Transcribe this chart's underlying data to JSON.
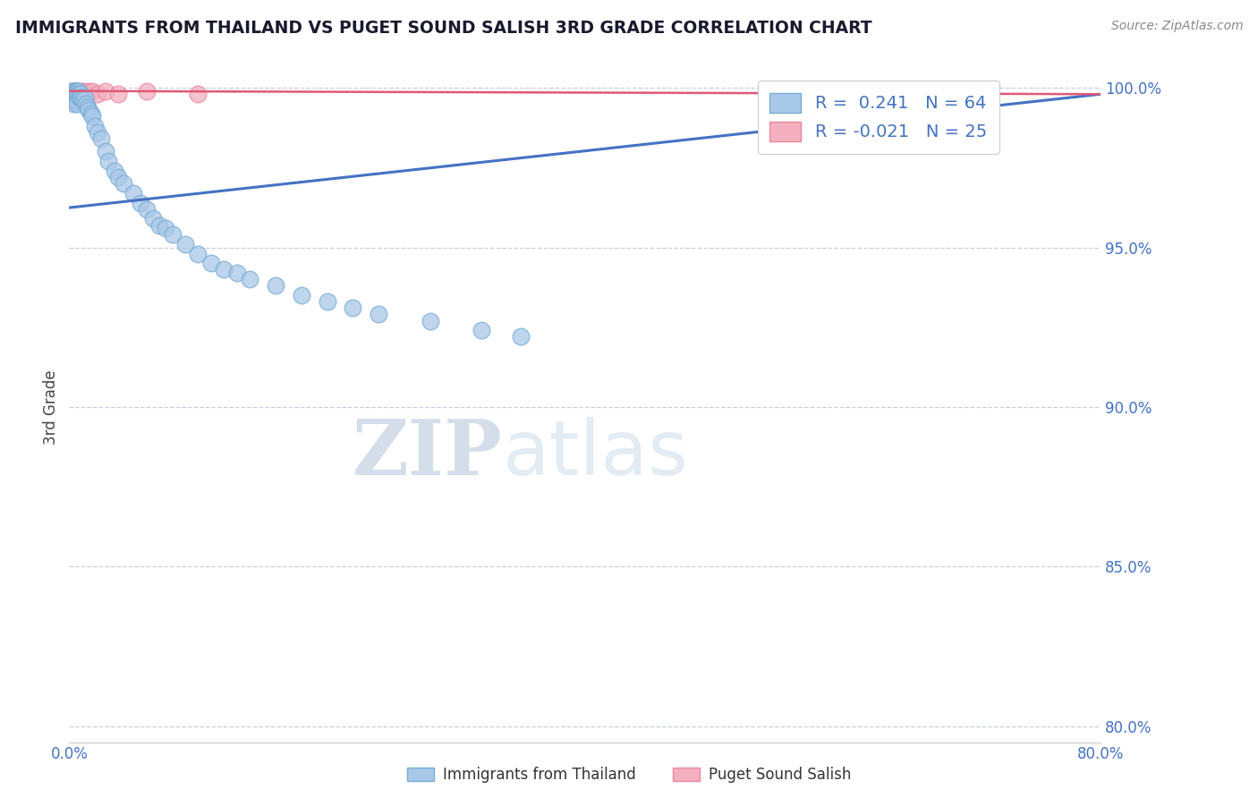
{
  "title": "IMMIGRANTS FROM THAILAND VS PUGET SOUND SALISH 3RD GRADE CORRELATION CHART",
  "source": "Source: ZipAtlas.com",
  "ylabel": "3rd Grade",
  "xlim": [
    0.0,
    0.8
  ],
  "ylim": [
    0.795,
    1.005
  ],
  "xticks": [
    0.0,
    0.1,
    0.2,
    0.3,
    0.4,
    0.5,
    0.6,
    0.7,
    0.8
  ],
  "yticks": [
    0.8,
    0.85,
    0.9,
    0.95,
    1.0
  ],
  "yticklabels": [
    "80.0%",
    "85.0%",
    "90.0%",
    "95.0%",
    "100.0%"
  ],
  "blue_R": 0.241,
  "blue_N": 64,
  "pink_R": -0.021,
  "pink_N": 25,
  "blue_color": "#a8c8e8",
  "pink_color": "#f4b0c0",
  "blue_edge": "#7aacd4",
  "pink_edge": "#e888a0",
  "trend_blue": "#4472c4",
  "trend_pink": "#e05878",
  "watermark_zip": "ZIP",
  "watermark_atlas": "atlas",
  "legend_label_blue": "Immigrants from Thailand",
  "legend_label_pink": "Puget Sound Salish",
  "blue_x": [
    0.002,
    0.002,
    0.002,
    0.003,
    0.003,
    0.003,
    0.003,
    0.003,
    0.004,
    0.004,
    0.004,
    0.004,
    0.005,
    0.005,
    0.005,
    0.005,
    0.006,
    0.006,
    0.006,
    0.006,
    0.006,
    0.007,
    0.007,
    0.008,
    0.008,
    0.009,
    0.009,
    0.01,
    0.011,
    0.012,
    0.013,
    0.014,
    0.015,
    0.017,
    0.018,
    0.02,
    0.022,
    0.025,
    0.028,
    0.03,
    0.035,
    0.038,
    0.042,
    0.05,
    0.055,
    0.06,
    0.065,
    0.07,
    0.075,
    0.08,
    0.09,
    0.1,
    0.11,
    0.12,
    0.13,
    0.14,
    0.16,
    0.18,
    0.2,
    0.22,
    0.24,
    0.28,
    0.32,
    0.35
  ],
  "blue_y": [
    0.999,
    0.998,
    0.997,
    0.999,
    0.998,
    0.997,
    0.996,
    0.995,
    0.999,
    0.998,
    0.997,
    0.996,
    0.999,
    0.998,
    0.997,
    0.996,
    0.999,
    0.998,
    0.997,
    0.996,
    0.995,
    0.999,
    0.998,
    0.998,
    0.997,
    0.998,
    0.997,
    0.997,
    0.996,
    0.997,
    0.995,
    0.994,
    0.993,
    0.992,
    0.991,
    0.988,
    0.986,
    0.984,
    0.98,
    0.977,
    0.974,
    0.972,
    0.97,
    0.967,
    0.964,
    0.962,
    0.959,
    0.957,
    0.956,
    0.954,
    0.951,
    0.948,
    0.945,
    0.943,
    0.942,
    0.94,
    0.938,
    0.935,
    0.933,
    0.931,
    0.929,
    0.927,
    0.924,
    0.922
  ],
  "pink_x": [
    0.002,
    0.002,
    0.003,
    0.003,
    0.004,
    0.004,
    0.005,
    0.005,
    0.006,
    0.006,
    0.007,
    0.008,
    0.009,
    0.01,
    0.011,
    0.012,
    0.015,
    0.018,
    0.022,
    0.028,
    0.038,
    0.06,
    0.1,
    0.56,
    0.7
  ],
  "pink_y": [
    0.999,
    0.998,
    0.999,
    0.998,
    0.999,
    0.998,
    0.999,
    0.998,
    0.999,
    0.998,
    0.999,
    0.998,
    0.999,
    0.998,
    0.999,
    0.998,
    0.999,
    0.999,
    0.998,
    0.999,
    0.998,
    0.999,
    0.998,
    0.999,
    0.999
  ],
  "blue_trend_x": [
    -0.01,
    0.8
  ],
  "blue_trend_y": [
    0.962,
    0.998
  ],
  "pink_trend_x": [
    -0.01,
    0.8
  ],
  "pink_trend_y": [
    0.999,
    0.998
  ],
  "title_color": "#1a1a2e",
  "axis_color": "#4472c4",
  "grid_color": "#c8d0dc",
  "bg_color": "#ffffff",
  "watermark_color": "#ccd8e8"
}
